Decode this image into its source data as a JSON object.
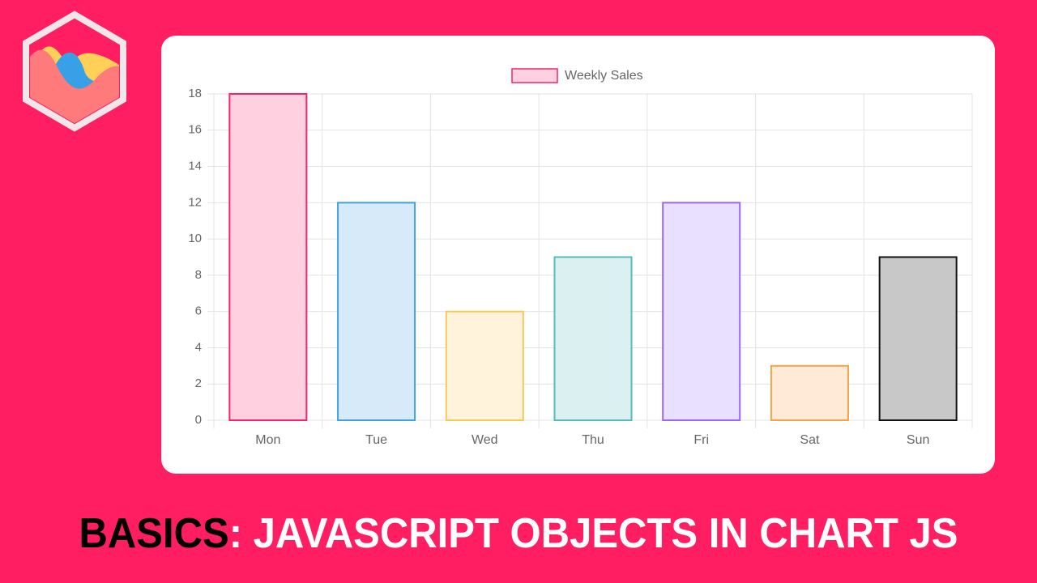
{
  "chart_data": {
    "type": "bar",
    "categories": [
      "Mon",
      "Tue",
      "Wed",
      "Thu",
      "Fri",
      "Sat",
      "Sun"
    ],
    "series": [
      {
        "name": "Weekly Sales",
        "values": [
          18,
          12,
          6,
          9,
          12,
          3,
          9
        ],
        "colors": [
          "#ffd1e0",
          "#d7eafa",
          "#fff3dc",
          "#dbf1f1",
          "#e9e0ff",
          "#ffead8",
          "#c8c8c8"
        ],
        "border_colors": [
          "#f5246a",
          "#3fa1e4",
          "#f3c95d",
          "#55bcbc",
          "#9c66f6",
          "#f6a24a",
          "#111111"
        ]
      }
    ],
    "ylim": [
      0,
      18
    ],
    "yticks": [
      0,
      2,
      4,
      6,
      8,
      10,
      12,
      14,
      16,
      18
    ],
    "grid": true,
    "legend": "top"
  },
  "headline": {
    "highlight": "BASICS",
    "rest": ": JAVASCRIPT OBJECTS IN CHART JS"
  }
}
